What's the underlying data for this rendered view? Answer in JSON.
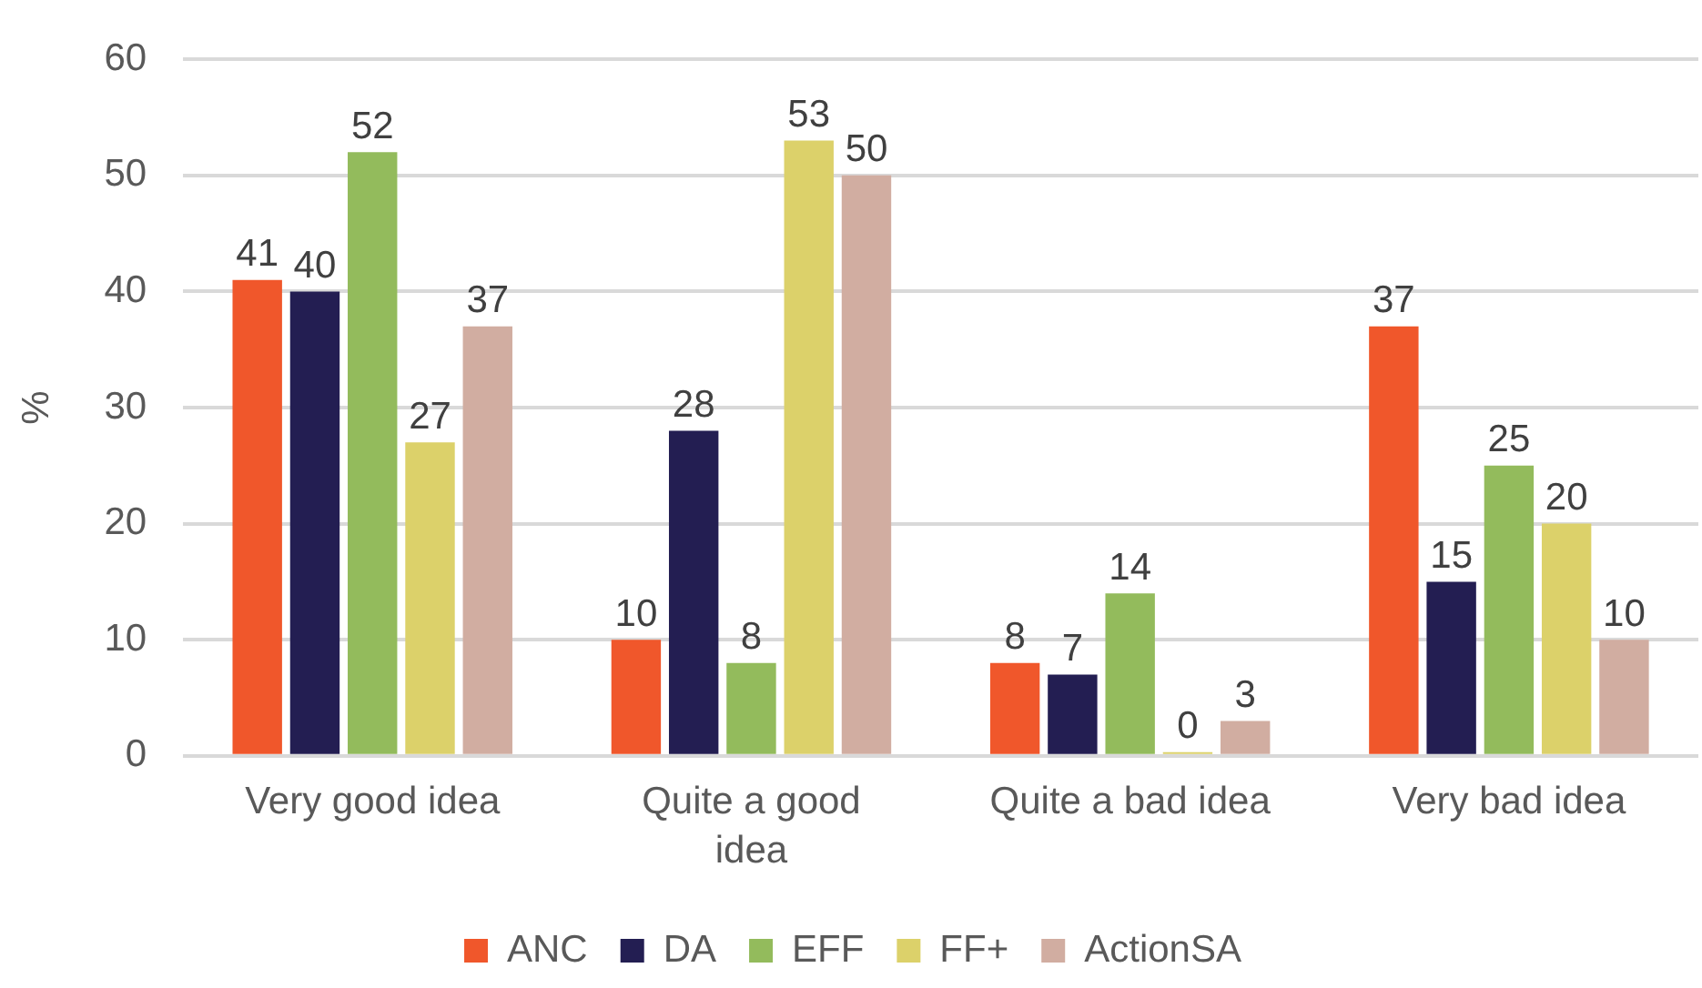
{
  "chart_data": {
    "type": "bar",
    "ylabel": "%",
    "categories": [
      "Very good idea",
      "Quite a good idea",
      "Quite a bad idea",
      "Very bad idea"
    ],
    "series": [
      {
        "name": "ANC",
        "color": "#f0572b",
        "values": [
          41,
          10,
          8,
          37
        ]
      },
      {
        "name": "DA",
        "color": "#231e52",
        "values": [
          40,
          28,
          7,
          15
        ]
      },
      {
        "name": "EFF",
        "color": "#93bb5c",
        "values": [
          52,
          8,
          14,
          25
        ]
      },
      {
        "name": "FF+",
        "color": "#dcd16a",
        "values": [
          27,
          53,
          0,
          20
        ]
      },
      {
        "name": "ActionSA",
        "color": "#d1ada1",
        "values": [
          37,
          50,
          3,
          10
        ]
      }
    ],
    "ylim": [
      0,
      60
    ],
    "yticks": [
      0,
      10,
      20,
      30,
      40,
      50,
      60
    ],
    "grid": "y",
    "legend": "bottom",
    "data_labels": true
  }
}
